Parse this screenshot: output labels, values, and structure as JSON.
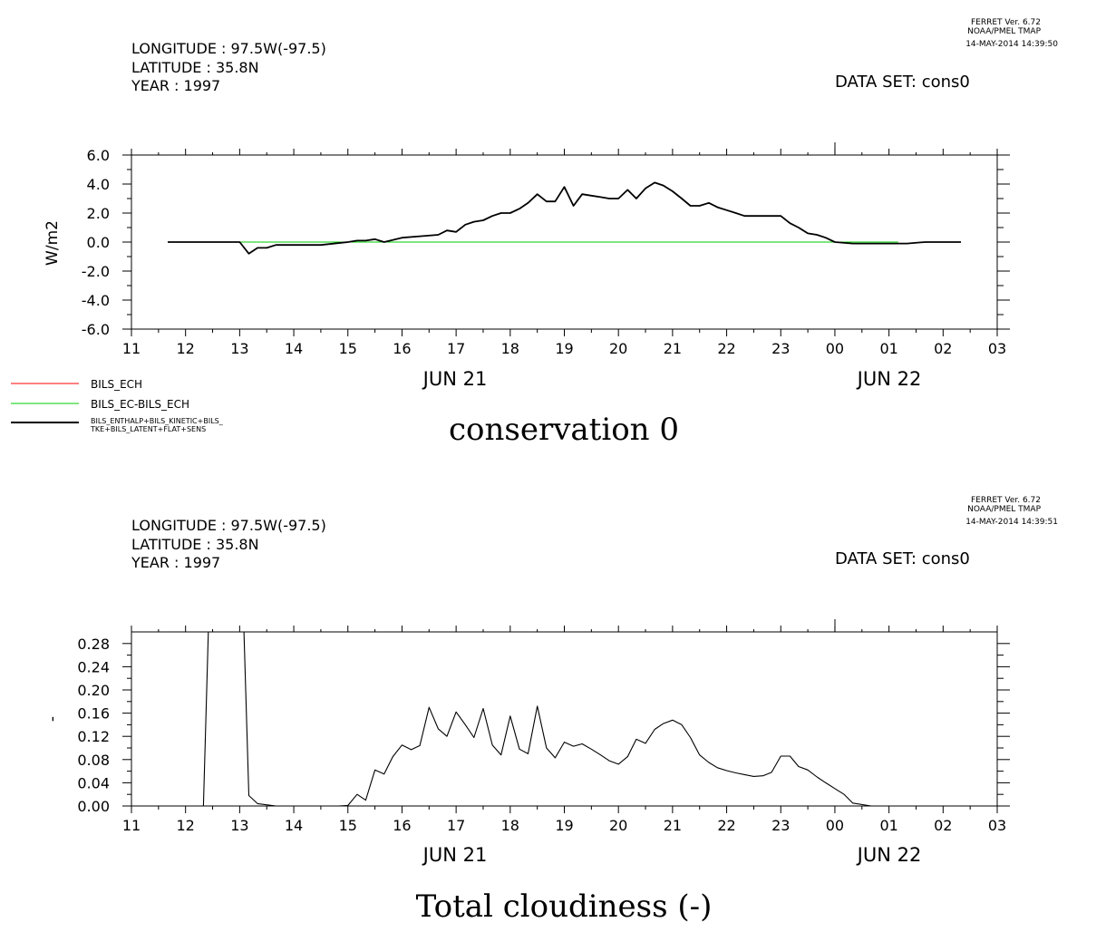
{
  "panels": [
    {
      "header": {
        "longitude": "LONGITUDE : 97.5W(-97.5)",
        "latitude": "LATITUDE : 35.8N",
        "year": "YEAR : 1997",
        "dataset": "DATA SET: cons0",
        "ferret": [
          "FERRET Ver. 6.72",
          "NOAA/PMEL TMAP",
          "14-MAY-2014 14:39:50"
        ]
      },
      "title": "conservation 0",
      "ylabel": "W/m2",
      "date_labels": [
        "JUN 21",
        "JUN 22"
      ],
      "legend": [
        {
          "label": "BILS_ECH",
          "color": "#ff0000"
        },
        {
          "label": "BILS_EC-BILS_ECH",
          "color": "#00cc00"
        },
        {
          "label": "BILS_ENTHALP+BILS_KINETIC+BILS_",
          "label2": "TKE+BILS_LATENT+FLAT+SENS",
          "color": "#000000"
        }
      ]
    },
    {
      "header": {
        "longitude": "LONGITUDE : 97.5W(-97.5)",
        "latitude": "LATITUDE : 35.8N",
        "year": "YEAR : 1997",
        "dataset": "DATA SET: cons0",
        "ferret": [
          "FERRET Ver. 6.72",
          "NOAA/PMEL TMAP",
          "14-MAY-2014 14:39:51"
        ]
      },
      "title": "Total cloudiness (-)",
      "ylabel": "-",
      "date_labels": [
        "JUN 21",
        "JUN 22"
      ]
    }
  ],
  "chart_data": [
    {
      "type": "line",
      "title": "conservation 0",
      "ylabel": "W/m2",
      "xlabel": "",
      "x_unit": "hour",
      "x_range": [
        11,
        27
      ],
      "ylim": [
        -6.0,
        6.0
      ],
      "x_ticks": [
        "11",
        "12",
        "13",
        "14",
        "15",
        "16",
        "17",
        "18",
        "19",
        "20",
        "21",
        "22",
        "23",
        "00",
        "01",
        "02",
        "03"
      ],
      "y_ticks": [
        "6.0",
        "4.0",
        "2.0",
        "0.0",
        "-2.0",
        "-4.0",
        "-6.0"
      ],
      "series": [
        {
          "name": "BILS_EC-BILS_ECH",
          "color": "#00cc00",
          "x": [
            11.67,
            25.17
          ],
          "y": [
            0,
            0
          ]
        },
        {
          "name": "BILS_ENTHALP+BILS_KINETIC+BILS_TKE+BILS_LATENT+FLAT+SENS",
          "color": "#000000",
          "x": [
            11.67,
            12.0,
            12.5,
            13.0,
            13.17,
            13.33,
            13.5,
            13.67,
            14.0,
            14.5,
            15.0,
            15.17,
            15.33,
            15.5,
            15.67,
            16.0,
            16.33,
            16.67,
            16.83,
            17.0,
            17.17,
            17.33,
            17.5,
            17.67,
            17.83,
            18.0,
            18.17,
            18.33,
            18.5,
            18.67,
            18.83,
            19.0,
            19.17,
            19.33,
            19.5,
            19.67,
            19.83,
            20.0,
            20.17,
            20.33,
            20.5,
            20.67,
            20.83,
            21.0,
            21.17,
            21.33,
            21.5,
            21.67,
            21.83,
            22.0,
            22.17,
            22.33,
            22.5,
            22.67,
            22.83,
            23.0,
            23.17,
            23.33,
            23.5,
            23.67,
            23.83,
            24.0,
            24.33,
            24.67,
            25.0,
            25.33,
            25.67,
            26.0,
            26.33
          ],
          "y": [
            0.0,
            0.0,
            0.0,
            0.0,
            -0.8,
            -0.4,
            -0.4,
            -0.2,
            -0.2,
            -0.2,
            0.0,
            0.1,
            0.1,
            0.2,
            0.0,
            0.3,
            0.4,
            0.5,
            0.8,
            0.7,
            1.2,
            1.4,
            1.5,
            1.8,
            2.0,
            2.0,
            2.3,
            2.7,
            3.3,
            2.8,
            2.8,
            3.8,
            2.5,
            3.3,
            3.2,
            3.1,
            3.0,
            3.0,
            3.6,
            3.0,
            3.7,
            4.1,
            3.9,
            3.5,
            3.0,
            2.5,
            2.5,
            2.7,
            2.4,
            2.2,
            2.0,
            1.8,
            1.8,
            1.8,
            1.8,
            1.8,
            1.3,
            1.0,
            0.6,
            0.5,
            0.3,
            0.0,
            -0.1,
            -0.1,
            -0.1,
            -0.1,
            0.0,
            0.0,
            0.0
          ]
        }
      ],
      "legend": [
        "BILS_ECH",
        "BILS_EC-BILS_ECH",
        "BILS_ENTHALP+BILS_KINETIC+BILS_TKE+BILS_LATENT+FLAT+SENS"
      ]
    },
    {
      "type": "line",
      "title": "Total cloudiness (-)",
      "ylabel": "-",
      "xlabel": "",
      "x_unit": "hour",
      "x_range": [
        11,
        27
      ],
      "ylim": [
        0.0,
        0.3
      ],
      "x_ticks": [
        "11",
        "12",
        "13",
        "14",
        "15",
        "16",
        "17",
        "18",
        "19",
        "20",
        "21",
        "22",
        "23",
        "00",
        "01",
        "02",
        "03"
      ],
      "y_ticks": [
        "0.28",
        "0.24",
        "0.20",
        "0.16",
        "0.12",
        "0.08",
        "0.04",
        "0.00"
      ],
      "series": [
        {
          "color": "#000000",
          "x": [
            12.0,
            12.33,
            12.42,
            13.08,
            13.17,
            13.33,
            13.67,
            14.0,
            14.5,
            14.83,
            15.0,
            15.17,
            15.33,
            15.5,
            15.67,
            15.83,
            16.0,
            16.17,
            16.33,
            16.5,
            16.67,
            16.83,
            17.0,
            17.17,
            17.33,
            17.5,
            17.67,
            17.83,
            18.0,
            18.17,
            18.33,
            18.5,
            18.67,
            18.83,
            19.0,
            19.17,
            19.33,
            19.5,
            19.67,
            19.83,
            20.0,
            20.17,
            20.33,
            20.5,
            20.67,
            20.83,
            21.0,
            21.17,
            21.33,
            21.5,
            21.67,
            21.83,
            22.0,
            22.17,
            22.33,
            22.5,
            22.67,
            22.83,
            23.0,
            23.17,
            23.33,
            23.5,
            23.67,
            23.83,
            24.0,
            24.17,
            24.33,
            24.67,
            25.0,
            25.33,
            26.0,
            26.33
          ],
          "y": [
            0.0,
            0.0,
            0.3,
            0.3,
            0.018,
            0.004,
            0.0,
            0.0,
            0.0,
            0.0,
            0.001,
            0.02,
            0.01,
            0.062,
            0.055,
            0.085,
            0.105,
            0.097,
            0.104,
            0.17,
            0.133,
            0.12,
            0.162,
            0.14,
            0.118,
            0.168,
            0.105,
            0.088,
            0.155,
            0.098,
            0.09,
            0.172,
            0.1,
            0.083,
            0.11,
            0.103,
            0.107,
            0.098,
            0.088,
            0.078,
            0.072,
            0.085,
            0.115,
            0.108,
            0.132,
            0.142,
            0.148,
            0.14,
            0.118,
            0.088,
            0.075,
            0.066,
            0.061,
            0.057,
            0.054,
            0.051,
            0.052,
            0.058,
            0.086,
            0.086,
            0.068,
            0.062,
            0.05,
            0.04,
            0.03,
            0.02,
            0.005,
            0.0,
            0.0,
            0.0,
            0.0,
            0.0
          ]
        }
      ]
    }
  ]
}
